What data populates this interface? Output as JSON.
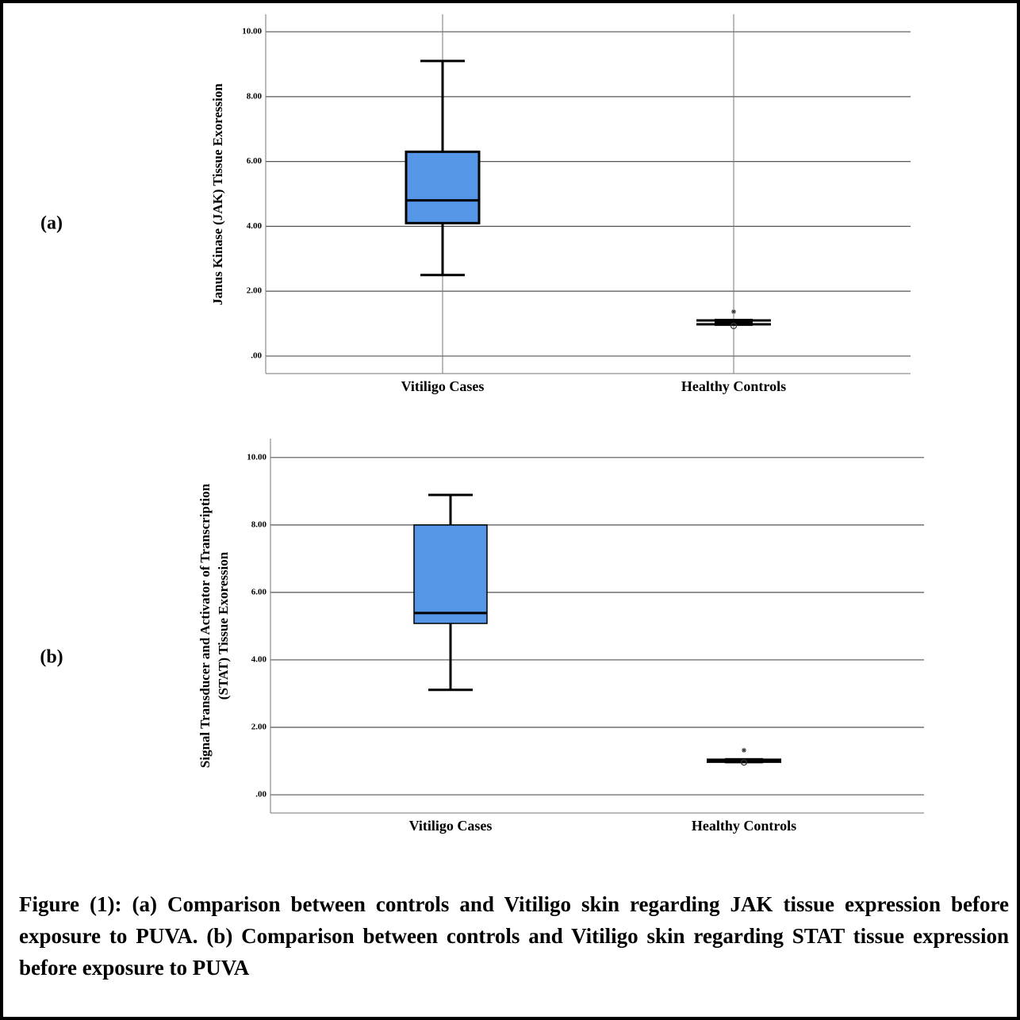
{
  "chart_data": [
    {
      "type": "box",
      "panel_label": "(a)",
      "ylabel": [
        "Janus Kinase (JAK) Tissue Exoression"
      ],
      "categories": [
        "Vitiligo Cases",
        "Healthy Controls"
      ],
      "color": "#5596e6",
      "grid": true,
      "xgrid": true,
      "ylim": [
        -0.54,
        10.54
      ],
      "yticks": [
        {
          "value": 0,
          "label": ".00"
        },
        {
          "value": 2,
          "label": "2.00"
        },
        {
          "value": 4,
          "label": "4.00"
        },
        {
          "value": 6,
          "label": "6.00"
        },
        {
          "value": 8,
          "label": "8.00"
        },
        {
          "value": 10,
          "label": "10.00"
        }
      ],
      "boxes": [
        {
          "min": 2.5,
          "q1": 4.1,
          "median": 4.8,
          "q3": 6.3,
          "max": 9.1,
          "outliers": [],
          "extremes": []
        },
        {
          "min": 0.98,
          "q1": 0.98,
          "median": 1.02,
          "q3": 1.1,
          "max": 1.1,
          "outliers": [
            0.93
          ],
          "extremes": [
            1.37
          ]
        }
      ]
    },
    {
      "type": "box",
      "panel_label": "(b)",
      "ylabel": [
        "Signal Transducer and Activator of Transcription",
        "(STAT) Tissue Exoression"
      ],
      "categories": [
        "Vitiligo Cases",
        "Healthy Controls"
      ],
      "color": "#5596e6",
      "grid": true,
      "xgrid": false,
      "ylim": [
        -0.54,
        10.56
      ],
      "yticks": [
        {
          "value": 0,
          "label": ".00"
        },
        {
          "value": 2,
          "label": "2.00"
        },
        {
          "value": 4,
          "label": "4.00"
        },
        {
          "value": 6,
          "label": "6.00"
        },
        {
          "value": 8,
          "label": "8.00"
        },
        {
          "value": 10,
          "label": "10.00"
        }
      ],
      "boxes": [
        {
          "min": 3.11,
          "q1": 5.08,
          "median": 5.39,
          "q3": 8.0,
          "max": 8.89,
          "outliers": [],
          "extremes": []
        },
        {
          "min": 0.98,
          "q1": 0.98,
          "median": 1.0,
          "q3": 1.04,
          "max": 1.04,
          "outliers": [
            0.96
          ],
          "extremes": [
            1.32
          ]
        }
      ]
    }
  ],
  "caption": "Figure (1): (a) Comparison between controls and Vitiligo skin regarding JAK tissue expression before exposure to PUVA. (b) Comparison between controls and Vitiligo  skin regarding STAT tissue expression before exposure to PUVA"
}
